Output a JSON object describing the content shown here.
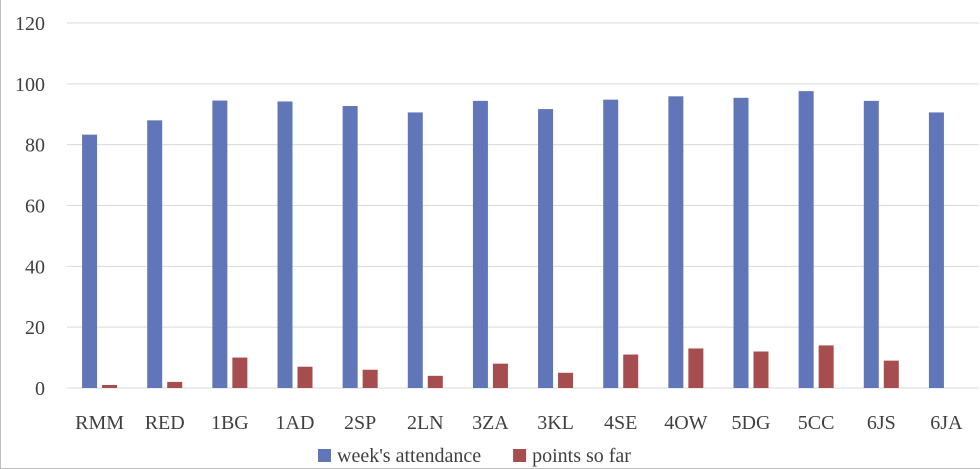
{
  "chart_data": {
    "type": "bar",
    "title": "",
    "xlabel": "",
    "ylabel": "",
    "ylim": [
      0,
      120
    ],
    "yticks": [
      0,
      20,
      40,
      60,
      80,
      100,
      120
    ],
    "grid": true,
    "legend_position": "bottom",
    "categories": [
      "RMM",
      "RED",
      "1BG",
      "1AD",
      "2SP",
      "2LN",
      "3ZA",
      "3KL",
      "4SE",
      "4OW",
      "5DG",
      "5CC",
      "6JS",
      "6JA"
    ],
    "series": [
      {
        "name": "week's attendance",
        "color": "#6176b8",
        "values": [
          83.3,
          88,
          94.5,
          94.2,
          92.7,
          90.6,
          94.4,
          91.7,
          94.8,
          95.9,
          95.4,
          97.6,
          94.4,
          90.6
        ]
      },
      {
        "name": "points so far",
        "color": "#a54d4f",
        "values": [
          1,
          2,
          10,
          7,
          6,
          4,
          8,
          5,
          11,
          13,
          12,
          14,
          9,
          0
        ]
      }
    ]
  }
}
